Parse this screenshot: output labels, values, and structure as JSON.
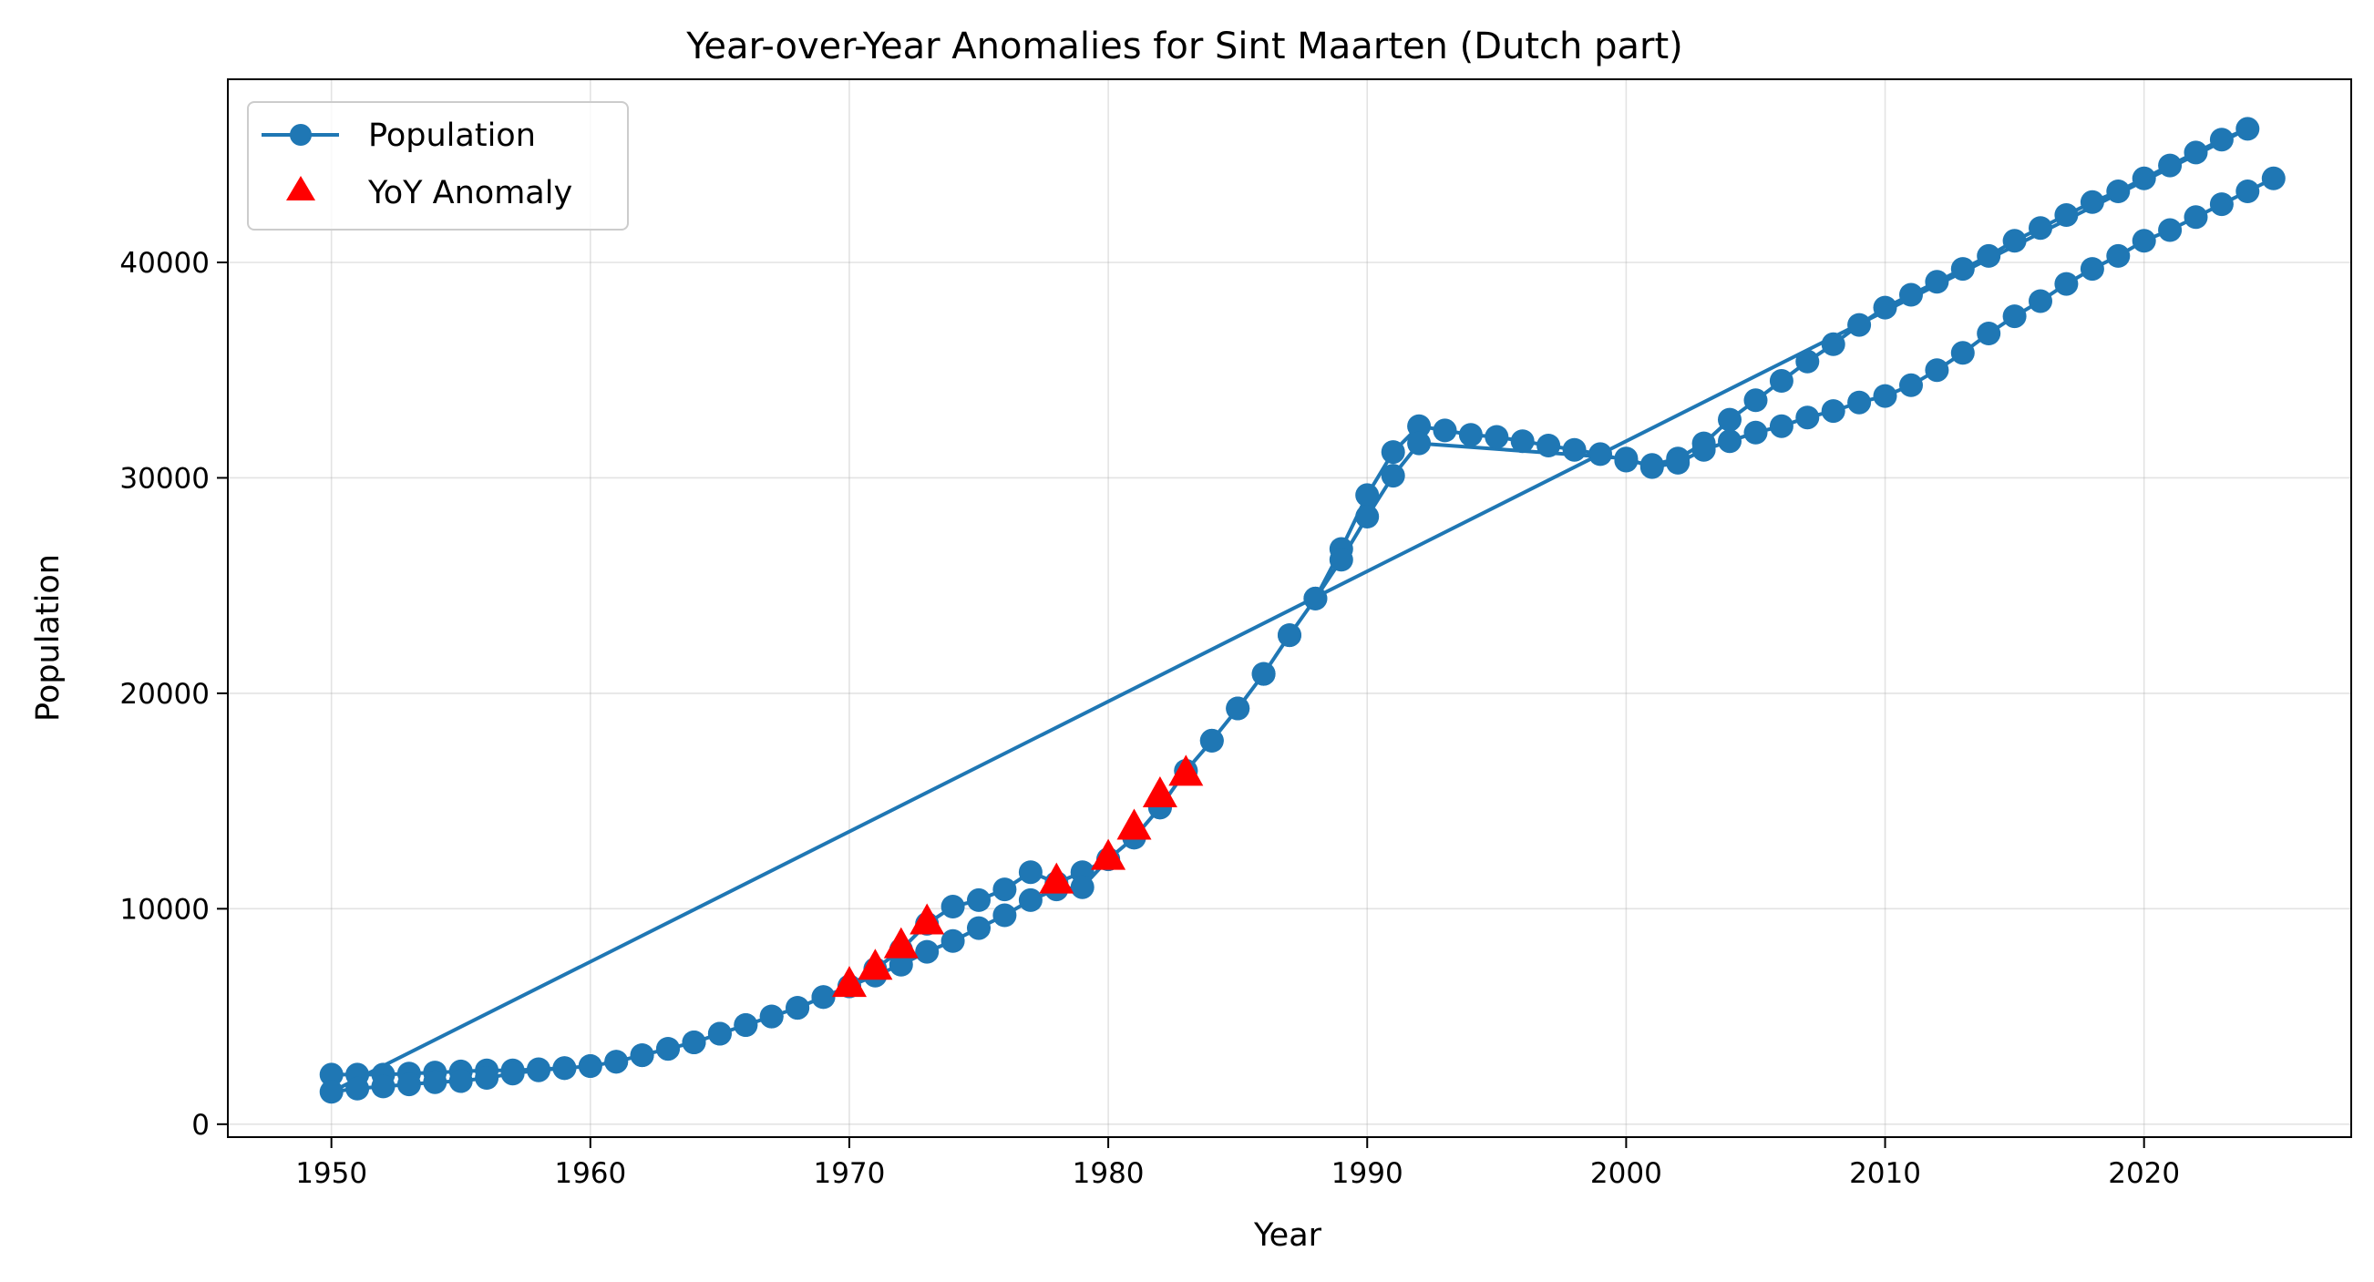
{
  "chart_data": {
    "type": "line",
    "title": "Year-over-Year Anomalies for Sint Maarten (Dutch part)",
    "xlabel": "Year",
    "ylabel": "Population",
    "xlim": [
      1946,
      2028
    ],
    "ylim": [
      -600,
      48500
    ],
    "x_ticks": [
      1950,
      1960,
      1970,
      1980,
      1990,
      2000,
      2010,
      2020
    ],
    "y_ticks": [
      0,
      10000,
      20000,
      30000,
      40000
    ],
    "grid": true,
    "legend_position": "upper-left",
    "series": [
      {
        "name": "Population",
        "style": "line-with-circle-markers",
        "color": "#1f77b4",
        "points": [
          [
            1950,
            2300
          ],
          [
            1951,
            2300
          ],
          [
            1952,
            2300
          ],
          [
            1953,
            2350
          ],
          [
            1954,
            2400
          ],
          [
            1955,
            2450
          ],
          [
            1956,
            2500
          ],
          [
            1957,
            2500
          ],
          [
            1958,
            2550
          ],
          [
            1959,
            2600
          ],
          [
            1960,
            2700
          ],
          [
            1961,
            2900
          ],
          [
            1962,
            3200
          ],
          [
            1963,
            3500
          ],
          [
            1964,
            3800
          ],
          [
            1965,
            4200
          ],
          [
            1966,
            4600
          ],
          [
            1967,
            5000
          ],
          [
            1968,
            5400
          ],
          [
            1969,
            5900
          ],
          [
            1970,
            6400
          ],
          [
            1971,
            7200
          ],
          [
            1972,
            8100
          ],
          [
            1973,
            9300
          ],
          [
            1974,
            10100
          ],
          [
            1975,
            10400
          ],
          [
            1976,
            10900
          ],
          [
            1977,
            11700
          ],
          [
            1978,
            11200
          ],
          [
            1979,
            11700
          ],
          [
            1980,
            12300
          ],
          [
            1981,
            13300
          ],
          [
            1982,
            14700
          ],
          [
            1983,
            16400
          ],
          [
            1984,
            17800
          ],
          [
            1985,
            19300
          ],
          [
            1986,
            20900
          ],
          [
            1987,
            22700
          ],
          [
            1988,
            24400
          ],
          [
            1989,
            26700
          ],
          [
            1990,
            29200
          ],
          [
            1991,
            31200
          ],
          [
            1992,
            32400
          ],
          [
            1993,
            32200
          ],
          [
            1994,
            32000
          ],
          [
            1995,
            31900
          ],
          [
            1996,
            31700
          ],
          [
            1997,
            31500
          ],
          [
            1998,
            31300
          ],
          [
            1999,
            31100
          ],
          [
            2000,
            30800
          ],
          [
            2001,
            30600
          ],
          [
            2002,
            30900
          ],
          [
            2003,
            31600
          ],
          [
            2004,
            32700
          ],
          [
            2005,
            33600
          ],
          [
            2006,
            34500
          ],
          [
            2007,
            35400
          ],
          [
            2008,
            36200
          ],
          [
            2009,
            37100
          ],
          [
            2010,
            37900
          ],
          [
            2011,
            38500
          ],
          [
            2012,
            39100
          ],
          [
            2013,
            39700
          ],
          [
            2014,
            40300
          ],
          [
            2015,
            41000
          ],
          [
            2016,
            41600
          ],
          [
            2017,
            42200
          ],
          [
            2018,
            42800
          ],
          [
            2019,
            43300
          ],
          [
            2020,
            43900
          ],
          [
            2021,
            44500
          ],
          [
            2022,
            45100
          ],
          [
            2023,
            45700
          ],
          [
            2024,
            46200
          ],
          [
            1950,
            1500
          ],
          [
            1951,
            1650
          ],
          [
            1952,
            1750
          ],
          [
            1953,
            1850
          ],
          [
            1954,
            1950
          ],
          [
            1955,
            2000
          ],
          [
            1956,
            2150
          ],
          [
            1957,
            2350
          ],
          [
            1958,
            2500
          ],
          [
            1959,
            2600
          ],
          [
            1960,
            2700
          ],
          [
            1961,
            2900
          ],
          [
            1962,
            3200
          ],
          [
            1963,
            3500
          ],
          [
            1964,
            3800
          ],
          [
            1965,
            4200
          ],
          [
            1966,
            4600
          ],
          [
            1967,
            5000
          ],
          [
            1968,
            5400
          ],
          [
            1969,
            5900
          ],
          [
            1970,
            6400
          ],
          [
            1971,
            6900
          ],
          [
            1972,
            7400
          ],
          [
            1973,
            8000
          ],
          [
            1974,
            8500
          ],
          [
            1975,
            9100
          ],
          [
            1976,
            9700
          ],
          [
            1977,
            10400
          ],
          [
            1978,
            10900
          ],
          [
            1979,
            11000
          ],
          [
            1980,
            12300
          ],
          [
            1981,
            13300
          ],
          [
            1982,
            14700
          ],
          [
            1983,
            16400
          ],
          [
            1984,
            17800
          ],
          [
            1985,
            19300
          ],
          [
            1986,
            20900
          ],
          [
            1987,
            22700
          ],
          [
            1988,
            24400
          ],
          [
            1989,
            26200
          ],
          [
            1990,
            28200
          ],
          [
            1991,
            30100
          ],
          [
            1992,
            31600
          ],
          [
            2000,
            30900
          ],
          [
            2001,
            30500
          ],
          [
            2002,
            30700
          ],
          [
            2003,
            31300
          ],
          [
            2004,
            31700
          ],
          [
            2005,
            32100
          ],
          [
            2006,
            32400
          ],
          [
            2007,
            32800
          ],
          [
            2008,
            33100
          ],
          [
            2009,
            33500
          ],
          [
            2010,
            33800
          ],
          [
            2011,
            34300
          ],
          [
            2012,
            35000
          ],
          [
            2013,
            35800
          ],
          [
            2014,
            36700
          ],
          [
            2015,
            37500
          ],
          [
            2016,
            38200
          ],
          [
            2017,
            39000
          ],
          [
            2018,
            39700
          ],
          [
            2019,
            40300
          ],
          [
            2020,
            41000
          ],
          [
            2021,
            41500
          ],
          [
            2022,
            42100
          ],
          [
            2023,
            42700
          ],
          [
            2024,
            43300
          ],
          [
            2025,
            43900
          ]
        ]
      },
      {
        "name": "YoY Anomaly",
        "style": "triangle-markers",
        "color": "#ff0000",
        "points": [
          [
            1970,
            6500
          ],
          [
            1971,
            7300
          ],
          [
            1972,
            8300
          ],
          [
            1973,
            9400
          ],
          [
            1978,
            11300
          ],
          [
            1980,
            12400
          ],
          [
            1981,
            13800
          ],
          [
            1982,
            15300
          ],
          [
            1983,
            16300
          ]
        ]
      }
    ]
  }
}
